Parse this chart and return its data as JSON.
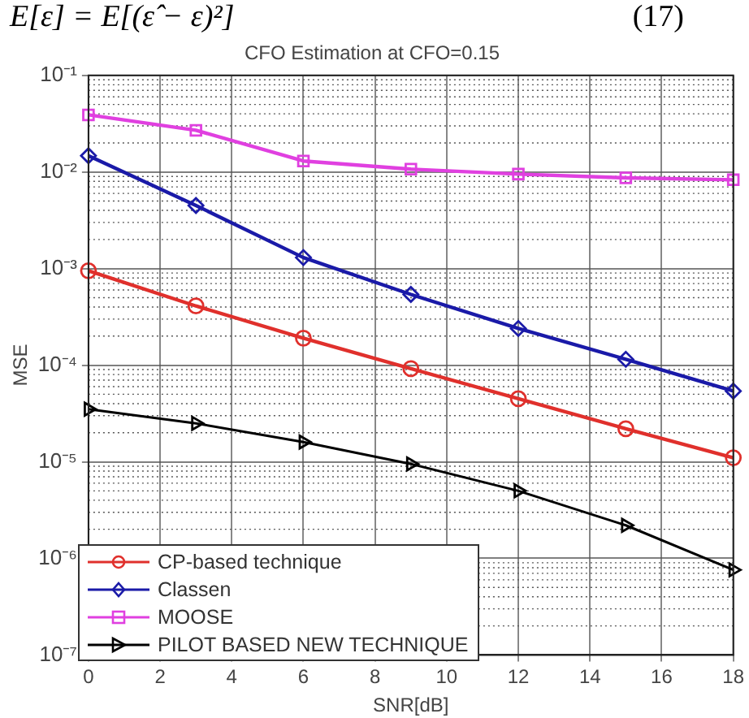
{
  "chart_data": {
    "type": "line",
    "title": "CFO Estimation at CFO=0.15",
    "xlabel": "SNR[dB]",
    "ylabel": "MSE",
    "annotations": [
      "E[ε] = E[(ε̂ − ε)²]",
      "(17)"
    ],
    "x": [
      0,
      3,
      6,
      9,
      12,
      15,
      18
    ],
    "series": [
      {
        "name": "CP-based technique",
        "color": "#e0302c",
        "marker": "circle",
        "values": [
          0.00095,
          0.00041,
          0.00019,
          9.2e-05,
          4.5e-05,
          2.2e-05,
          1.1e-05
        ]
      },
      {
        "name": "Classen",
        "color": "#1a1aa8",
        "marker": "diamond",
        "values": [
          0.0147,
          0.0045,
          0.0013,
          0.00054,
          0.00024,
          0.000115,
          5.4e-05
        ]
      },
      {
        "name": "MOOSE",
        "color": "#e040e0",
        "marker": "square",
        "values": [
          0.039,
          0.027,
          0.013,
          0.0107,
          0.0095,
          0.0087,
          0.0083
        ]
      },
      {
        "name": "PILOT BASED NEW TECHNIQUE",
        "color": "#000000",
        "marker": "triangle",
        "values": [
          3.5e-05,
          2.5e-05,
          1.6e-05,
          9.5e-06,
          5e-06,
          2.2e-06,
          7.6e-07
        ]
      }
    ],
    "log": "y",
    "xlim": [
      0,
      18
    ],
    "xticks": [
      0,
      2,
      4,
      6,
      8,
      10,
      12,
      14,
      16,
      18
    ],
    "ylim": [
      1e-07,
      0.1
    ],
    "yticks": [
      {
        "value": 1e-07,
        "label": "10⁻⁷"
      },
      {
        "value": 1e-06,
        "label": "10⁻⁶"
      },
      {
        "value": 1e-05,
        "label": "10⁻⁵"
      },
      {
        "value": 0.0001,
        "label": "10⁻⁴"
      },
      {
        "value": 0.001,
        "label": "10⁻³"
      },
      {
        "value": 0.01,
        "label": "10⁻²"
      },
      {
        "value": 0.1,
        "label": "10⁻¹"
      }
    ],
    "grid": true,
    "legend": "bottom left",
    "line_style": "solid"
  }
}
